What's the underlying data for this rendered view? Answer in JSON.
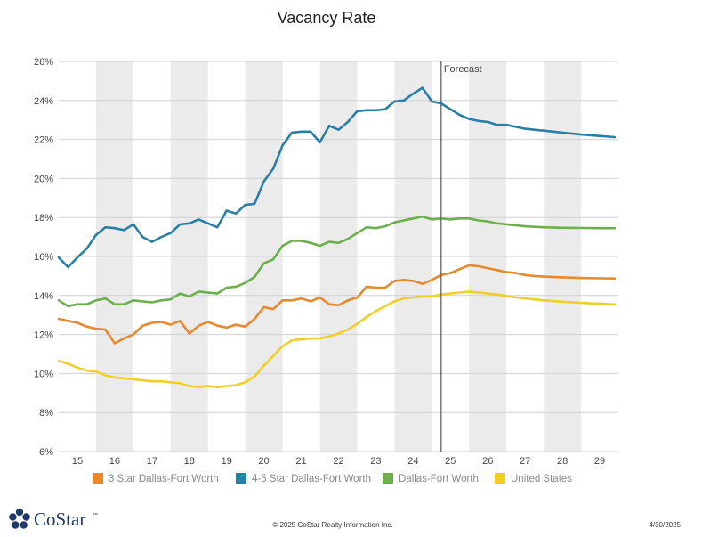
{
  "chart_data": {
    "type": "line",
    "title": "Vacancy Rate",
    "xlabel": "",
    "ylabel": "",
    "ylim": [
      6,
      26
    ],
    "y_ticks": [
      "6%",
      "8%",
      "10%",
      "12%",
      "14%",
      "16%",
      "18%",
      "20%",
      "22%",
      "24%",
      "26%"
    ],
    "x_ticks": [
      "15",
      "16",
      "17",
      "18",
      "19",
      "20",
      "21",
      "22",
      "23",
      "24",
      "25",
      "26",
      "27",
      "28",
      "29"
    ],
    "x_range": [
      2015,
      2030
    ],
    "forecast_at": 2025.25,
    "forecast_label": "Forecast",
    "grid": true,
    "legend_position": "bottom",
    "series": [
      {
        "name": "3 Star Dallas-Fort Worth",
        "color": "#e8892e",
        "x": [
          2015.0,
          2015.25,
          2015.5,
          2015.75,
          2016.0,
          2016.25,
          2016.5,
          2016.75,
          2017.0,
          2017.25,
          2017.5,
          2017.75,
          2018.0,
          2018.25,
          2018.5,
          2018.75,
          2019.0,
          2019.25,
          2019.5,
          2019.75,
          2020.0,
          2020.25,
          2020.5,
          2020.75,
          2021.0,
          2021.25,
          2021.5,
          2021.75,
          2022.0,
          2022.25,
          2022.5,
          2022.75,
          2023.0,
          2023.25,
          2023.5,
          2023.75,
          2024.0,
          2024.25,
          2024.5,
          2024.75,
          2025.0,
          2025.25,
          2025.5,
          2025.75,
          2026.0,
          2026.25,
          2026.5,
          2026.75,
          2027.0,
          2027.25,
          2027.5,
          2027.75,
          2028.0,
          2028.5,
          2029.0,
          2029.5,
          2029.9
        ],
        "values": [
          12.8,
          12.7,
          12.6,
          12.4,
          12.3,
          12.25,
          11.55,
          11.8,
          12.0,
          12.45,
          12.6,
          12.65,
          12.5,
          12.7,
          12.05,
          12.45,
          12.65,
          12.45,
          12.35,
          12.5,
          12.4,
          12.8,
          13.4,
          13.3,
          13.75,
          13.75,
          13.85,
          13.7,
          13.9,
          13.55,
          13.5,
          13.75,
          13.9,
          14.45,
          14.4,
          14.4,
          14.75,
          14.8,
          14.75,
          14.6,
          14.8,
          15.05,
          15.15,
          15.35,
          15.55,
          15.5,
          15.4,
          15.3,
          15.2,
          15.15,
          15.05,
          15.0,
          14.97,
          14.93,
          14.9,
          14.88,
          14.87
        ]
      },
      {
        "name": "4-5 Star Dallas-Fort Worth",
        "color": "#2a7fa8",
        "x": [
          2015.0,
          2015.25,
          2015.5,
          2015.75,
          2016.0,
          2016.25,
          2016.5,
          2016.75,
          2017.0,
          2017.25,
          2017.5,
          2017.75,
          2018.0,
          2018.25,
          2018.5,
          2018.75,
          2019.0,
          2019.25,
          2019.5,
          2019.75,
          2020.0,
          2020.25,
          2020.5,
          2020.75,
          2021.0,
          2021.25,
          2021.5,
          2021.75,
          2022.0,
          2022.25,
          2022.5,
          2022.75,
          2023.0,
          2023.25,
          2023.5,
          2023.75,
          2024.0,
          2024.25,
          2024.5,
          2024.75,
          2025.0,
          2025.25,
          2025.5,
          2025.75,
          2026.0,
          2026.25,
          2026.5,
          2026.75,
          2027.0,
          2027.25,
          2027.5,
          2027.75,
          2028.0,
          2028.5,
          2029.0,
          2029.5,
          2029.9
        ],
        "values": [
          15.95,
          15.45,
          15.95,
          16.4,
          17.1,
          17.5,
          17.45,
          17.35,
          17.65,
          17.0,
          16.75,
          17.0,
          17.2,
          17.65,
          17.7,
          17.9,
          17.7,
          17.5,
          18.35,
          18.2,
          18.65,
          18.7,
          19.85,
          20.5,
          21.7,
          22.35,
          22.4,
          22.4,
          21.85,
          22.7,
          22.5,
          22.9,
          23.45,
          23.5,
          23.5,
          23.55,
          23.95,
          24.0,
          24.35,
          24.65,
          23.95,
          23.85,
          23.55,
          23.25,
          23.05,
          22.95,
          22.9,
          22.75,
          22.75,
          22.65,
          22.55,
          22.5,
          22.45,
          22.35,
          22.25,
          22.18,
          22.12
        ]
      },
      {
        "name": "Dallas-Fort Worth",
        "color": "#6ab04c",
        "x": [
          2015.0,
          2015.25,
          2015.5,
          2015.75,
          2016.0,
          2016.25,
          2016.5,
          2016.75,
          2017.0,
          2017.25,
          2017.5,
          2017.75,
          2018.0,
          2018.25,
          2018.5,
          2018.75,
          2019.0,
          2019.25,
          2019.5,
          2019.75,
          2020.0,
          2020.25,
          2020.5,
          2020.75,
          2021.0,
          2021.25,
          2021.5,
          2021.75,
          2022.0,
          2022.25,
          2022.5,
          2022.75,
          2023.0,
          2023.25,
          2023.5,
          2023.75,
          2024.0,
          2024.25,
          2024.5,
          2024.75,
          2025.0,
          2025.25,
          2025.5,
          2025.75,
          2026.0,
          2026.25,
          2026.5,
          2026.75,
          2027.0,
          2027.25,
          2027.5,
          2027.75,
          2028.0,
          2028.5,
          2029.0,
          2029.5,
          2029.9
        ],
        "values": [
          13.75,
          13.45,
          13.55,
          13.55,
          13.75,
          13.85,
          13.55,
          13.55,
          13.75,
          13.7,
          13.65,
          13.75,
          13.8,
          14.1,
          13.95,
          14.2,
          14.15,
          14.1,
          14.4,
          14.45,
          14.65,
          14.95,
          15.65,
          15.85,
          16.55,
          16.8,
          16.8,
          16.7,
          16.55,
          16.75,
          16.7,
          16.9,
          17.2,
          17.5,
          17.45,
          17.55,
          17.75,
          17.85,
          17.95,
          18.05,
          17.9,
          17.95,
          17.9,
          17.95,
          17.95,
          17.85,
          17.8,
          17.7,
          17.65,
          17.6,
          17.55,
          17.52,
          17.5,
          17.47,
          17.46,
          17.45,
          17.45
        ]
      },
      {
        "name": "United States",
        "color": "#f0cf2b",
        "x": [
          2015.0,
          2015.25,
          2015.5,
          2015.75,
          2016.0,
          2016.25,
          2016.5,
          2016.75,
          2017.0,
          2017.25,
          2017.5,
          2017.75,
          2018.0,
          2018.25,
          2018.5,
          2018.75,
          2019.0,
          2019.25,
          2019.5,
          2019.75,
          2020.0,
          2020.25,
          2020.5,
          2020.75,
          2021.0,
          2021.25,
          2021.5,
          2021.75,
          2022.0,
          2022.25,
          2022.5,
          2022.75,
          2023.0,
          2023.25,
          2023.5,
          2023.75,
          2024.0,
          2024.25,
          2024.5,
          2024.75,
          2025.0,
          2025.25,
          2025.5,
          2025.75,
          2026.0,
          2026.25,
          2026.5,
          2026.75,
          2027.0,
          2027.25,
          2027.5,
          2027.75,
          2028.0,
          2028.5,
          2029.0,
          2029.5,
          2029.9
        ],
        "values": [
          10.65,
          10.5,
          10.3,
          10.15,
          10.1,
          9.9,
          9.8,
          9.75,
          9.7,
          9.65,
          9.6,
          9.6,
          9.55,
          9.5,
          9.35,
          9.3,
          9.35,
          9.3,
          9.35,
          9.4,
          9.55,
          9.85,
          10.4,
          10.9,
          11.4,
          11.7,
          11.75,
          11.8,
          11.8,
          11.9,
          12.05,
          12.25,
          12.55,
          12.9,
          13.2,
          13.45,
          13.7,
          13.85,
          13.9,
          13.95,
          13.95,
          14.05,
          14.1,
          14.15,
          14.2,
          14.15,
          14.1,
          14.05,
          13.98,
          13.9,
          13.85,
          13.8,
          13.75,
          13.68,
          13.62,
          13.58,
          13.55
        ]
      }
    ]
  },
  "footer": {
    "copyright": "© 2025 CoStar Realty Information Inc.",
    "date": "4/30/2025"
  },
  "logo": {
    "text": "CoStar",
    "tm": "™",
    "icon": "costar-star-logo-icon"
  }
}
